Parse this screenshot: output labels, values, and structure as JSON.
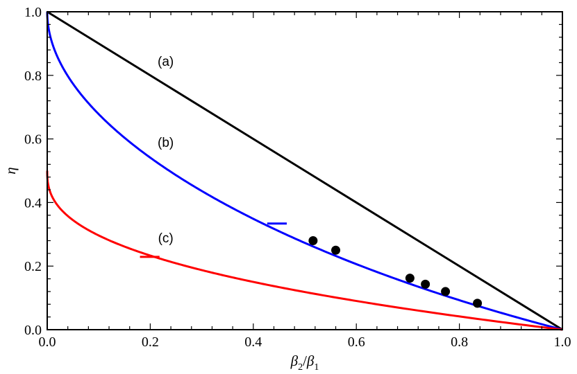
{
  "chart_data": {
    "type": "line",
    "title": "",
    "xlabel_parts": {
      "num": "β",
      "num_sub": "2",
      "sep": "/",
      "den": "β",
      "den_sub": "1"
    },
    "ylabel": "η",
    "xlim": [
      0.0,
      1.0
    ],
    "ylim": [
      0.0,
      1.0
    ],
    "xticks": [
      "0.0",
      "0.2",
      "0.4",
      "0.6",
      "0.8",
      "1.0"
    ],
    "yticks": [
      "0.0",
      "0.2",
      "0.4",
      "0.6",
      "0.8",
      "1.0"
    ],
    "grid": false,
    "series": [
      {
        "label": "(a)",
        "color": "#000000",
        "kind": "line_linear"
      },
      {
        "label": "(b)",
        "color": "#0000ff",
        "kind": "curve_b"
      },
      {
        "label": "(c)",
        "color": "#ff0000",
        "kind": "curve_c"
      }
    ],
    "label_positions_data": [
      {
        "label": "(a)",
        "x": 0.23,
        "y": 0.845
      },
      {
        "label": "(b)",
        "x": 0.23,
        "y": 0.59
      },
      {
        "label": "(c)",
        "x": 0.23,
        "y": 0.29
      }
    ],
    "markers": [
      {
        "series": "(b)",
        "x": 0.446,
        "y": 0.334
      },
      {
        "series": "(c)",
        "x": 0.199,
        "y": 0.229
      }
    ],
    "points": [
      {
        "x": 0.516,
        "y": 0.28
      },
      {
        "x": 0.56,
        "y": 0.25
      },
      {
        "x": 0.704,
        "y": 0.162
      },
      {
        "x": 0.734,
        "y": 0.143
      },
      {
        "x": 0.773,
        "y": 0.12
      },
      {
        "x": 0.835,
        "y": 0.083
      }
    ]
  }
}
